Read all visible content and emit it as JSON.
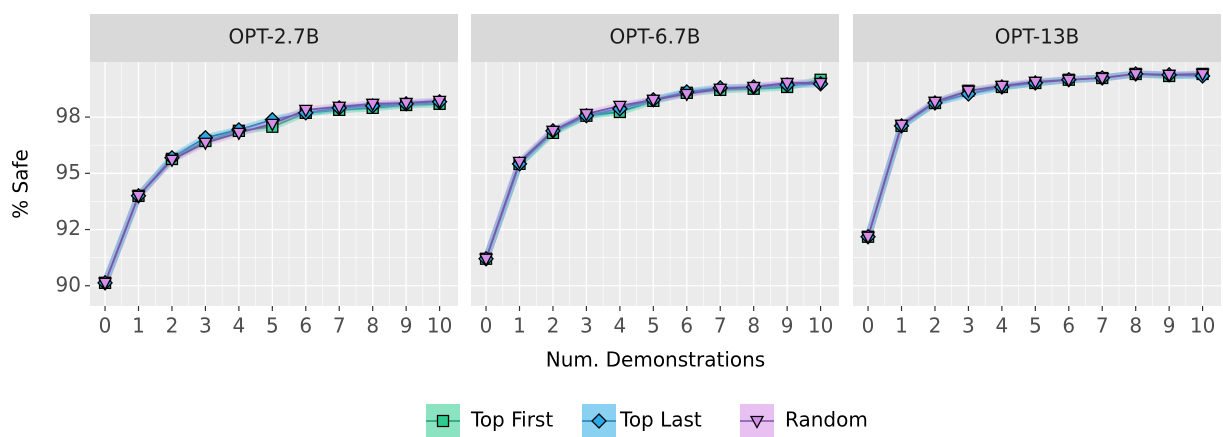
{
  "chart_data": [
    {
      "type": "line",
      "title": "OPT-2.7B",
      "ylabel": "% Safe",
      "x": [
        0,
        1,
        2,
        3,
        4,
        5,
        6,
        7,
        8,
        9,
        10
      ],
      "xlim": [
        -0.45,
        10.55
      ],
      "xticks": [
        0,
        1,
        2,
        3,
        4,
        5,
        6,
        7,
        8,
        9,
        10
      ],
      "ylim": [
        89.1,
        99.95
      ],
      "yticks": [
        90,
        {
          "value": 92.5,
          "label": "92"
        },
        95,
        {
          "value": 97.5,
          "label": "98"
        }
      ],
      "grid": true,
      "series": [
        {
          "name": "Top First",
          "color": "#2ecc8f",
          "values": [
            90.13,
            94.0,
            95.64,
            96.44,
            96.89,
            97.07,
            97.69,
            97.82,
            97.91,
            98.04,
            98.09
          ]
        },
        {
          "name": "Top Last",
          "color": "#29a9e6",
          "values": [
            90.13,
            94.0,
            95.69,
            96.58,
            96.93,
            97.38,
            97.69,
            97.91,
            98.0,
            98.09,
            98.18
          ]
        },
        {
          "name": "Random",
          "color": "#d68ee8",
          "values": [
            90.13,
            94.0,
            95.6,
            96.36,
            96.8,
            97.2,
            97.82,
            97.96,
            98.09,
            98.13,
            98.22
          ]
        }
      ]
    },
    {
      "type": "line",
      "title": "OPT-6.7B",
      "xlabel": "Num. Demonstrations",
      "x": [
        0,
        1,
        2,
        3,
        4,
        5,
        6,
        7,
        8,
        9,
        10
      ],
      "xlim": [
        -0.45,
        10.55
      ],
      "xticks": [
        0,
        1,
        2,
        3,
        4,
        5,
        6,
        7,
        8,
        9,
        10
      ],
      "ylim": [
        89.1,
        99.95
      ],
      "yticks": [
        90,
        {
          "value": 92.5,
          "label": "92"
        },
        95,
        {
          "value": 97.5,
          "label": "98"
        }
      ],
      "grid": true,
      "series": [
        {
          "name": "Top First",
          "color": "#2ecc8f",
          "values": [
            91.2,
            95.42,
            96.8,
            97.56,
            97.73,
            98.22,
            98.58,
            98.71,
            98.76,
            98.84,
            99.16
          ]
        },
        {
          "name": "Top Last",
          "color": "#29a9e6",
          "values": [
            91.2,
            95.42,
            96.89,
            97.56,
            97.87,
            98.27,
            98.62,
            98.8,
            98.84,
            98.93,
            98.98
          ]
        },
        {
          "name": "Random",
          "color": "#d68ee8",
          "values": [
            91.2,
            95.51,
            96.89,
            97.64,
            98.0,
            98.27,
            98.53,
            98.76,
            98.84,
            99.02,
            99.02
          ]
        }
      ]
    },
    {
      "type": "line",
      "title": "OPT-13B",
      "x": [
        0,
        1,
        2,
        3,
        4,
        5,
        6,
        7,
        8,
        9,
        10
      ],
      "xlim": [
        -0.45,
        10.55
      ],
      "xticks": [
        0,
        1,
        2,
        3,
        4,
        5,
        6,
        7,
        8,
        9,
        10
      ],
      "ylim": [
        89.1,
        99.95
      ],
      "yticks": [
        90,
        {
          "value": 92.5,
          "label": "92"
        },
        95,
        {
          "value": 97.5,
          "label": "98"
        }
      ],
      "grid": true,
      "series": [
        {
          "name": "Top First",
          "color": "#2ecc8f",
          "values": [
            92.18,
            97.11,
            98.13,
            98.67,
            98.84,
            99.02,
            99.16,
            99.24,
            99.42,
            99.33,
            99.42
          ]
        },
        {
          "name": "Top Last",
          "color": "#29a9e6",
          "values": [
            92.18,
            97.11,
            98.13,
            98.53,
            98.84,
            99.02,
            99.16,
            99.24,
            99.42,
            99.38,
            99.33
          ]
        },
        {
          "name": "Random",
          "color": "#d68ee8",
          "values": [
            92.18,
            97.16,
            98.18,
            98.67,
            98.89,
            99.07,
            99.16,
            99.24,
            99.42,
            99.38,
            99.42
          ]
        }
      ]
    }
  ]
}
